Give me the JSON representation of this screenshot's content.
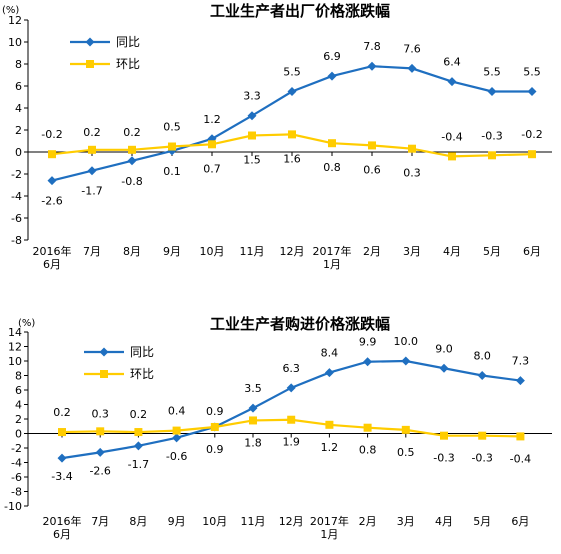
{
  "chart_data": [
    {
      "type": "line",
      "title": "工业生产者出厂价格涨跌幅",
      "unit": "(%)",
      "categories": [
        "2016年\n6月",
        "7月",
        "8月",
        "9月",
        "10月",
        "11月",
        "12月",
        "2017年\n1月",
        "2月",
        "3月",
        "4月",
        "5月",
        "6月"
      ],
      "ylim": [
        -8,
        12
      ],
      "yticks": [
        -8,
        -6,
        -4,
        -2,
        0,
        2,
        4,
        6,
        8,
        10,
        12
      ],
      "legend_position": "top-left",
      "grid": false,
      "series": [
        {
          "name": "同比",
          "color": "#1f6fc0",
          "marker": "diamond",
          "values": [
            -2.6,
            -1.7,
            -0.8,
            0.1,
            1.2,
            3.3,
            5.5,
            6.9,
            7.8,
            7.6,
            6.4,
            5.5,
            5.5
          ]
        },
        {
          "name": "环比",
          "color": "#ffcc00",
          "marker": "square",
          "values": [
            -0.2,
            0.2,
            0.2,
            0.5,
            0.7,
            1.5,
            1.6,
            0.8,
            0.6,
            0.3,
            -0.4,
            -0.3,
            -0.2
          ]
        }
      ]
    },
    {
      "type": "line",
      "title": "工业生产者购进价格涨跌幅",
      "unit": "(%)",
      "categories": [
        "2016年\n6月",
        "7月",
        "8月",
        "9月",
        "10月",
        "11月",
        "12月",
        "2017年\n1月",
        "2月",
        "3月",
        "4月",
        "5月",
        "6月"
      ],
      "ylim": [
        -10,
        14
      ],
      "yticks": [
        -10,
        -8,
        -6,
        -4,
        -2,
        0,
        2,
        4,
        6,
        8,
        10,
        12,
        14
      ],
      "legend_position": "top-left",
      "grid": false,
      "series": [
        {
          "name": "同比",
          "color": "#1f6fc0",
          "marker": "diamond",
          "values": [
            -3.4,
            -2.6,
            -1.7,
            -0.6,
            0.9,
            3.5,
            6.3,
            8.4,
            9.9,
            10.0,
            9.0,
            8.0,
            7.3
          ],
          "labels": [
            "-3.4",
            "-2.6",
            "-1.7",
            "-0.6",
            "0.9",
            "3.5",
            "6.3",
            "8.4",
            "9.9",
            "10.0",
            "9.0",
            "8.0",
            "7.3"
          ]
        },
        {
          "name": "环比",
          "color": "#ffcc00",
          "marker": "square",
          "values": [
            0.2,
            0.3,
            0.2,
            0.4,
            0.9,
            1.8,
            1.9,
            1.2,
            0.8,
            0.5,
            -0.3,
            -0.3,
            -0.4
          ]
        }
      ]
    }
  ]
}
